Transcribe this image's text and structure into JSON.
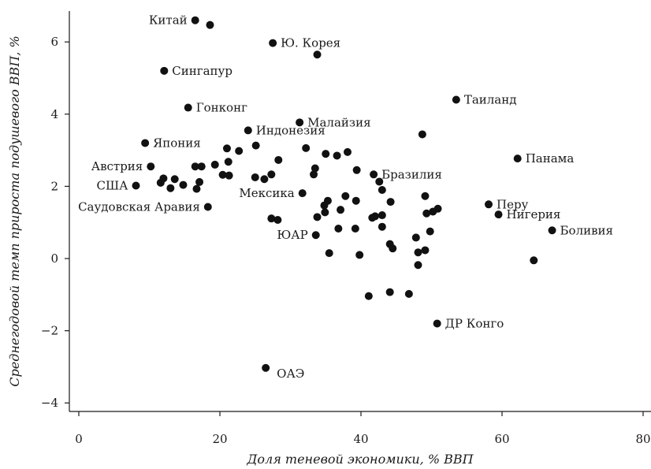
{
  "chart_data": {
    "type": "scatter",
    "xlabel": "Доля теневой экономики, % ВВП",
    "ylabel": "Среднегодовой темп прироста подушевого ВВП, %",
    "xlim": [
      -1,
      81
    ],
    "ylim": [
      -4.2,
      6.8
    ],
    "xticks": [
      0,
      20,
      40,
      60,
      80
    ],
    "yticks": [
      -4,
      -2,
      0,
      2,
      4,
      6
    ],
    "xtick_labels": [
      "0",
      "20",
      "40",
      "60",
      "80"
    ],
    "ytick_labels": [
      "−4",
      "−2",
      "0",
      "2",
      "4",
      "6"
    ],
    "grid": false,
    "marker_color": "#111111",
    "points": [
      {
        "x": 16.5,
        "y": 6.6,
        "label": "Китай",
        "label_side": "left"
      },
      {
        "x": 18.6,
        "y": 6.47
      },
      {
        "x": 27.5,
        "y": 5.97,
        "label": "Ю. Корея",
        "label_side": "right"
      },
      {
        "x": 33.8,
        "y": 5.65
      },
      {
        "x": 12.1,
        "y": 5.2,
        "label": "Сингапур",
        "label_side": "right"
      },
      {
        "x": 53.5,
        "y": 4.4,
        "label": "Таиланд",
        "label_side": "right"
      },
      {
        "x": 15.5,
        "y": 4.18,
        "label": "Гонконг",
        "label_side": "right"
      },
      {
        "x": 31.3,
        "y": 3.77,
        "label": "Малайзия",
        "label_side": "right"
      },
      {
        "x": 24.0,
        "y": 3.55,
        "label": "Индонезия",
        "label_side": "right"
      },
      {
        "x": 48.7,
        "y": 3.44
      },
      {
        "x": 9.4,
        "y": 3.2,
        "label": "Япония",
        "label_side": "right"
      },
      {
        "x": 25.1,
        "y": 3.13
      },
      {
        "x": 21.0,
        "y": 3.05
      },
      {
        "x": 32.2,
        "y": 3.06
      },
      {
        "x": 22.7,
        "y": 2.98
      },
      {
        "x": 38.1,
        "y": 2.95
      },
      {
        "x": 35.0,
        "y": 2.9
      },
      {
        "x": 36.6,
        "y": 2.85
      },
      {
        "x": 62.2,
        "y": 2.77,
        "label": "Панама",
        "label_side": "right"
      },
      {
        "x": 28.3,
        "y": 2.73
      },
      {
        "x": 21.2,
        "y": 2.68
      },
      {
        "x": 19.3,
        "y": 2.6
      },
      {
        "x": 10.2,
        "y": 2.55,
        "label": "Австрия",
        "label_side": "left"
      },
      {
        "x": 16.5,
        "y": 2.55
      },
      {
        "x": 17.4,
        "y": 2.55
      },
      {
        "x": 33.5,
        "y": 2.5
      },
      {
        "x": 39.4,
        "y": 2.45
      },
      {
        "x": 41.8,
        "y": 2.33,
        "label": "Бразилия",
        "label_side": "right"
      },
      {
        "x": 33.3,
        "y": 2.33
      },
      {
        "x": 27.3,
        "y": 2.33
      },
      {
        "x": 20.4,
        "y": 2.32
      },
      {
        "x": 21.3,
        "y": 2.3
      },
      {
        "x": 25.0,
        "y": 2.25
      },
      {
        "x": 26.3,
        "y": 2.2
      },
      {
        "x": 12.0,
        "y": 2.22
      },
      {
        "x": 13.6,
        "y": 2.2
      },
      {
        "x": 17.1,
        "y": 2.12
      },
      {
        "x": 42.6,
        "y": 2.13
      },
      {
        "x": 11.6,
        "y": 2.1
      },
      {
        "x": 8.1,
        "y": 2.02,
        "label": "США",
        "label_side": "left"
      },
      {
        "x": 14.8,
        "y": 2.04
      },
      {
        "x": 13.0,
        "y": 1.95
      },
      {
        "x": 16.7,
        "y": 1.93
      },
      {
        "x": 43.0,
        "y": 1.9
      },
      {
        "x": 31.7,
        "y": 1.81,
        "label": "Мексика",
        "label_side": "left"
      },
      {
        "x": 49.1,
        "y": 1.73
      },
      {
        "x": 37.8,
        "y": 1.73
      },
      {
        "x": 39.3,
        "y": 1.6
      },
      {
        "x": 35.3,
        "y": 1.6
      },
      {
        "x": 44.2,
        "y": 1.57
      },
      {
        "x": 58.1,
        "y": 1.5,
        "label": "Перу",
        "label_side": "right"
      },
      {
        "x": 34.8,
        "y": 1.47
      },
      {
        "x": 18.3,
        "y": 1.43,
        "label": "Саудовская Аравия",
        "label_side": "left"
      },
      {
        "x": 50.9,
        "y": 1.38
      },
      {
        "x": 37.1,
        "y": 1.35
      },
      {
        "x": 50.2,
        "y": 1.3
      },
      {
        "x": 34.9,
        "y": 1.28
      },
      {
        "x": 49.3,
        "y": 1.25
      },
      {
        "x": 59.5,
        "y": 1.22,
        "label": "Нигерия",
        "label_side": "right"
      },
      {
        "x": 43.0,
        "y": 1.2
      },
      {
        "x": 42.0,
        "y": 1.17
      },
      {
        "x": 41.6,
        "y": 1.13
      },
      {
        "x": 33.8,
        "y": 1.15
      },
      {
        "x": 27.3,
        "y": 1.11
      },
      {
        "x": 28.2,
        "y": 1.07
      },
      {
        "x": 43.0,
        "y": 0.88
      },
      {
        "x": 36.8,
        "y": 0.83
      },
      {
        "x": 39.2,
        "y": 0.83
      },
      {
        "x": 67.1,
        "y": 0.78,
        "label": "Боливия",
        "label_side": "right"
      },
      {
        "x": 49.8,
        "y": 0.75
      },
      {
        "x": 33.6,
        "y": 0.65,
        "label": "ЮАР",
        "label_side": "left"
      },
      {
        "x": 47.8,
        "y": 0.58
      },
      {
        "x": 44.1,
        "y": 0.4
      },
      {
        "x": 44.5,
        "y": 0.28
      },
      {
        "x": 49.1,
        "y": 0.23
      },
      {
        "x": 48.1,
        "y": 0.17
      },
      {
        "x": 35.5,
        "y": 0.15
      },
      {
        "x": 39.8,
        "y": 0.1
      },
      {
        "x": 64.5,
        "y": -0.05
      },
      {
        "x": 48.1,
        "y": -0.18
      },
      {
        "x": 46.8,
        "y": -0.98
      },
      {
        "x": 44.1,
        "y": -0.93
      },
      {
        "x": 41.1,
        "y": -1.04
      },
      {
        "x": 50.8,
        "y": -1.8,
        "label": "ДР Конго",
        "label_side": "right"
      },
      {
        "x": 26.5,
        "y": -3.03,
        "label": "ОАЭ",
        "label_side": "right-below"
      }
    ]
  }
}
